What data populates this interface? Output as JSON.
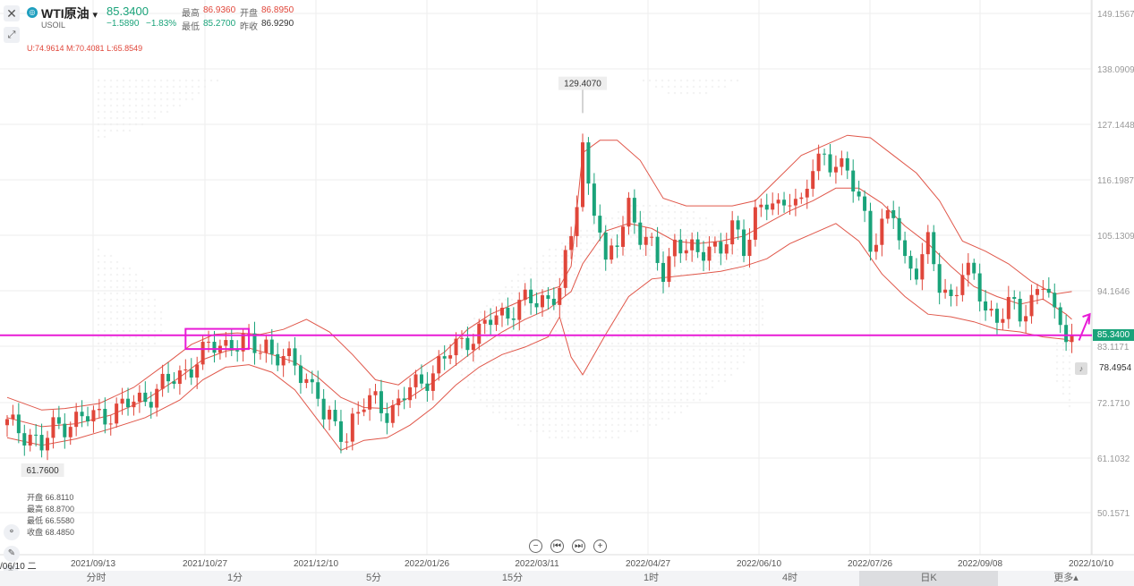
{
  "header": {
    "symbol": "WTI原油",
    "dropdown": "▾",
    "code": "USOIL",
    "price": "85.3400",
    "change": "−1.5890",
    "change_pct": "−1.83%",
    "high_label": "最高",
    "high": "86.9360",
    "open_label": "开盘",
    "open": "86.8950",
    "low_label": "最低",
    "low": "85.2700",
    "prev_label": "昨收",
    "prev": "86.9290",
    "boll": "U:74.9614  M:70.4081  L:65.8549"
  },
  "ohlc_panel": {
    "open": "开盘 66.8110",
    "high": "最高 68.8700",
    "low": "最低 66.5580",
    "close": "收盘 68.4850"
  },
  "axis_left_date": "/06/10 二",
  "current_price_tag": "85.3400",
  "alert_value": "78.4954",
  "tabs": [
    "分时",
    "1分",
    "5分",
    "15分",
    "1时",
    "4时",
    "日K",
    "更多▴"
  ],
  "active_tab": "日K",
  "colors": {
    "up": "#e0463a",
    "down": "#1aa37a",
    "band": "#e0574a",
    "highlight": "#e81bd6"
  },
  "chart_data": {
    "type": "candlestick",
    "y_ticks": [
      "149.1567",
      "138.0909",
      "127.1448",
      "116.1987",
      "105.1309",
      "94.1646",
      "83.1171",
      "72.1710",
      "61.1032",
      "50.1571"
    ],
    "y_tick_values": [
      149.1567,
      138.0909,
      127.1448,
      116.1987,
      105.1309,
      94.1646,
      83.1171,
      72.171,
      61.1032,
      50.1571
    ],
    "x_ticks": [
      "2021/09/13",
      "2021/10/27",
      "2021/12/10",
      "2022/01/26",
      "2022/03/11",
      "2022/04/27",
      "2022/06/10",
      "2022/07/26",
      "2022/09/08",
      "2022/10/10"
    ],
    "max_label": "129.4070",
    "min_label": "61.7600",
    "horizontal_line": 85.34,
    "close_points": [
      [
        0,
        67.5
      ],
      [
        4,
        65.8
      ],
      [
        6,
        63.0
      ],
      [
        8,
        66.8
      ],
      [
        11,
        68.5
      ],
      [
        14,
        68.8
      ],
      [
        17,
        69.8
      ],
      [
        20,
        71.0
      ],
      [
        23,
        72.5
      ],
      [
        26,
        74.5
      ],
      [
        29,
        76.5
      ],
      [
        31,
        78.5
      ],
      [
        33,
        80.5
      ],
      [
        35,
        82.5
      ],
      [
        37,
        83.5
      ],
      [
        39,
        84.0
      ],
      [
        41,
        83.8
      ],
      [
        43,
        82.5
      ],
      [
        45,
        84.0
      ],
      [
        46,
        82.0
      ],
      [
        48,
        80.5
      ],
      [
        50,
        79.0
      ],
      [
        52,
        77.0
      ],
      [
        54,
        74.0
      ],
      [
        55,
        69.0
      ],
      [
        57,
        66.8
      ],
      [
        59,
        65.8
      ],
      [
        60,
        69.0
      ],
      [
        62,
        71.5
      ],
      [
        64,
        72.0
      ],
      [
        66,
        70.5
      ],
      [
        68,
        71.8
      ],
      [
        70,
        74.5
      ],
      [
        72,
        76.0
      ],
      [
        74,
        78.5
      ],
      [
        76,
        80.5
      ],
      [
        78,
        83.0
      ],
      [
        80,
        85.0
      ],
      [
        82,
        86.0
      ],
      [
        84,
        88.0
      ],
      [
        86,
        89.5
      ],
      [
        88,
        91.0
      ],
      [
        90,
        92.0
      ],
      [
        92,
        91.5
      ],
      [
        94,
        93.0
      ],
      [
        96,
        95.0
      ],
      [
        98,
        104.0
      ],
      [
        99,
        112.0
      ],
      [
        100,
        123.5
      ],
      [
        101,
        115.0
      ],
      [
        103,
        107.0
      ],
      [
        104,
        98.0
      ],
      [
        106,
        104.0
      ],
      [
        108,
        112.0
      ],
      [
        110,
        105.0
      ],
      [
        112,
        102.0
      ],
      [
        114,
        98.0
      ],
      [
        116,
        104.0
      ],
      [
        118,
        102.0
      ],
      [
        120,
        101.0
      ],
      [
        122,
        104.0
      ],
      [
        124,
        102.0
      ],
      [
        126,
        106.0
      ],
      [
        128,
        103.0
      ],
      [
        130,
        110.0
      ],
      [
        132,
        111.0
      ],
      [
        134,
        110.0
      ],
      [
        136,
        114.0
      ],
      [
        138,
        111.0
      ],
      [
        140,
        118.0
      ],
      [
        142,
        121.0
      ],
      [
        144,
        120.0
      ],
      [
        146,
        117.0
      ],
      [
        148,
        112.0
      ],
      [
        149,
        109.0
      ],
      [
        150,
        104.0
      ],
      [
        152,
        107.0
      ],
      [
        154,
        109.0
      ],
      [
        156,
        100.0
      ],
      [
        158,
        99.0
      ],
      [
        160,
        103.0
      ],
      [
        162,
        95.0
      ],
      [
        164,
        93.0
      ],
      [
        166,
        98.0
      ],
      [
        168,
        96.0
      ],
      [
        170,
        91.0
      ],
      [
        172,
        89.0
      ],
      [
        174,
        91.0
      ],
      [
        176,
        89.0
      ],
      [
        178,
        93.0
      ],
      [
        180,
        96.0
      ],
      [
        181,
        93.0
      ],
      [
        182,
        88.0
      ],
      [
        184,
        86.5
      ],
      [
        185,
        85.34
      ]
    ],
    "upper_band_points": [
      [
        0,
        73.0
      ],
      [
        6,
        70.5
      ],
      [
        10,
        70.8
      ],
      [
        16,
        71.8
      ],
      [
        22,
        75.0
      ],
      [
        28,
        80.0
      ],
      [
        32,
        83.5
      ],
      [
        36,
        85.5
      ],
      [
        40,
        85.8
      ],
      [
        44,
        85.5
      ],
      [
        48,
        86.5
      ],
      [
        52,
        88.5
      ],
      [
        56,
        86.0
      ],
      [
        60,
        81.5
      ],
      [
        64,
        76.5
      ],
      [
        68,
        75.5
      ],
      [
        72,
        79.0
      ],
      [
        76,
        82.0
      ],
      [
        80,
        86.5
      ],
      [
        84,
        89.5
      ],
      [
        88,
        91.5
      ],
      [
        92,
        93.5
      ],
      [
        96,
        95.0
      ],
      [
        98,
        99.0
      ],
      [
        100,
        121.5
      ],
      [
        103,
        124.0
      ],
      [
        106,
        124.0
      ],
      [
        110,
        120.0
      ],
      [
        114,
        112.5
      ],
      [
        118,
        111.0
      ],
      [
        122,
        111.0
      ],
      [
        126,
        111.0
      ],
      [
        130,
        112.0
      ],
      [
        134,
        116.5
      ],
      [
        138,
        121.0
      ],
      [
        142,
        123.0
      ],
      [
        146,
        125.0
      ],
      [
        150,
        124.5
      ],
      [
        154,
        121.0
      ],
      [
        158,
        117.5
      ],
      [
        162,
        112.0
      ],
      [
        166,
        104.0
      ],
      [
        170,
        102.0
      ],
      [
        174,
        99.5
      ],
      [
        178,
        96.0
      ],
      [
        182,
        93.5
      ],
      [
        185,
        94.0
      ]
    ],
    "middle_band_points": [
      [
        0,
        69.0
      ],
      [
        6,
        67.2
      ],
      [
        12,
        67.8
      ],
      [
        18,
        69.5
      ],
      [
        24,
        72.5
      ],
      [
        30,
        77.0
      ],
      [
        34,
        80.5
      ],
      [
        38,
        82.2
      ],
      [
        42,
        82.8
      ],
      [
        46,
        81.5
      ],
      [
        50,
        80.0
      ],
      [
        54,
        77.0
      ],
      [
        58,
        73.0
      ],
      [
        62,
        71.0
      ],
      [
        66,
        70.8
      ],
      [
        70,
        73.0
      ],
      [
        74,
        76.0
      ],
      [
        78,
        79.5
      ],
      [
        82,
        83.0
      ],
      [
        86,
        86.0
      ],
      [
        90,
        88.5
      ],
      [
        94,
        90.5
      ],
      [
        98,
        94.0
      ],
      [
        100,
        99.5
      ],
      [
        104,
        106.0
      ],
      [
        108,
        107.5
      ],
      [
        112,
        106.5
      ],
      [
        116,
        104.0
      ],
      [
        120,
        103.5
      ],
      [
        124,
        104.0
      ],
      [
        128,
        105.0
      ],
      [
        132,
        107.5
      ],
      [
        136,
        110.0
      ],
      [
        140,
        112.0
      ],
      [
        144,
        114.5
      ],
      [
        148,
        114.5
      ],
      [
        152,
        111.5
      ],
      [
        156,
        107.0
      ],
      [
        160,
        103.5
      ],
      [
        164,
        99.0
      ],
      [
        168,
        95.0
      ],
      [
        172,
        93.0
      ],
      [
        176,
        91.5
      ],
      [
        180,
        92.5
      ],
      [
        184,
        89.5
      ],
      [
        185,
        88.5
      ]
    ],
    "lower_band_points": [
      [
        0,
        65.0
      ],
      [
        6,
        63.5
      ],
      [
        12,
        64.8
      ],
      [
        18,
        66.8
      ],
      [
        24,
        69.0
      ],
      [
        30,
        72.5
      ],
      [
        34,
        76.5
      ],
      [
        38,
        79.0
      ],
      [
        42,
        79.5
      ],
      [
        46,
        78.0
      ],
      [
        50,
        74.5
      ],
      [
        54,
        68.5
      ],
      [
        58,
        62.5
      ],
      [
        62,
        64.5
      ],
      [
        66,
        65.0
      ],
      [
        70,
        67.5
      ],
      [
        74,
        71.0
      ],
      [
        78,
        75.5
      ],
      [
        82,
        79.0
      ],
      [
        86,
        81.5
      ],
      [
        90,
        83.0
      ],
      [
        94,
        85.0
      ],
      [
        96,
        89.0
      ],
      [
        98,
        81.0
      ],
      [
        100,
        77.5
      ],
      [
        104,
        85.5
      ],
      [
        108,
        93.0
      ],
      [
        112,
        96.5
      ],
      [
        116,
        97.0
      ],
      [
        120,
        97.5
      ],
      [
        124,
        98.0
      ],
      [
        128,
        99.0
      ],
      [
        132,
        100.5
      ],
      [
        136,
        103.5
      ],
      [
        140,
        105.5
      ],
      [
        144,
        107.5
      ],
      [
        148,
        104.0
      ],
      [
        152,
        97.5
      ],
      [
        156,
        93.0
      ],
      [
        160,
        89.5
      ],
      [
        164,
        89.0
      ],
      [
        168,
        88.0
      ],
      [
        172,
        86.5
      ],
      [
        176,
        86.0
      ],
      [
        180,
        85.0
      ],
      [
        184,
        84.5
      ],
      [
        185,
        84.0
      ]
    ]
  }
}
